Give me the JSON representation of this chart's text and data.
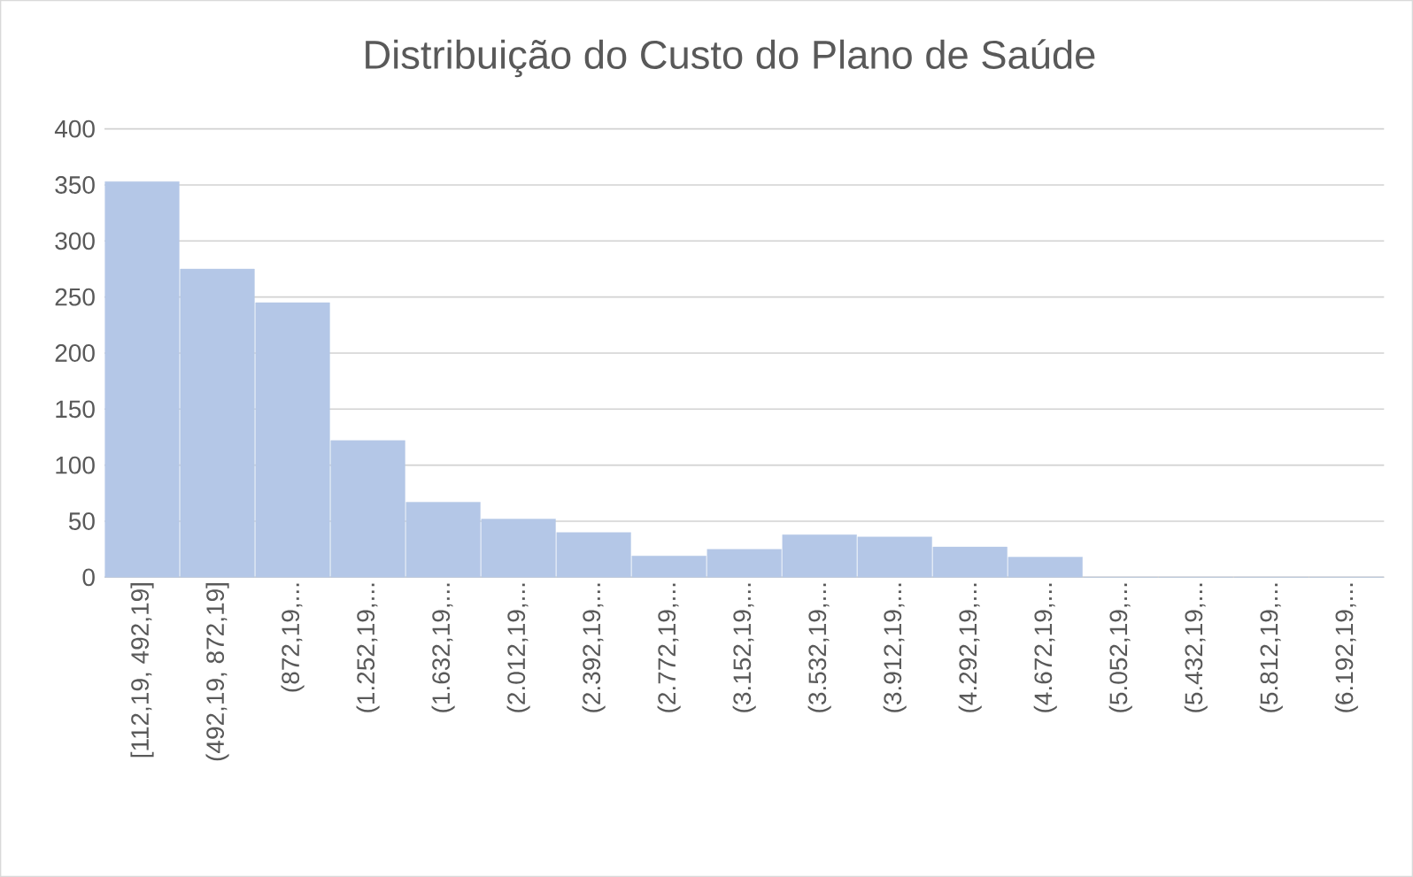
{
  "chart_data": {
    "type": "bar",
    "title": "Distribuição do Custo do Plano de Saúde",
    "categories": [
      "[112,19, 492,19]",
      "(492,19, 872,19]",
      "(872,19,...",
      "(1.252,19,...",
      "(1.632,19,...",
      "(2.012,19,...",
      "(2.392,19,...",
      "(2.772,19,...",
      "(3.152,19,...",
      "(3.532,19,...",
      "(3.912,19,...",
      "(4.292,19,...",
      "(4.672,19,...",
      "(5.052,19,...",
      "(5.432,19,...",
      "(5.812,19,...",
      "(6.192,19,..."
    ],
    "values": [
      353,
      275,
      245,
      122,
      67,
      52,
      40,
      19,
      25,
      38,
      36,
      27,
      18,
      0,
      0,
      0,
      0
    ],
    "color": "#b4c7e7",
    "ylim": [
      0,
      400
    ],
    "yticks": [
      0,
      50,
      100,
      150,
      200,
      250,
      300,
      350,
      400
    ],
    "grid": "y"
  }
}
